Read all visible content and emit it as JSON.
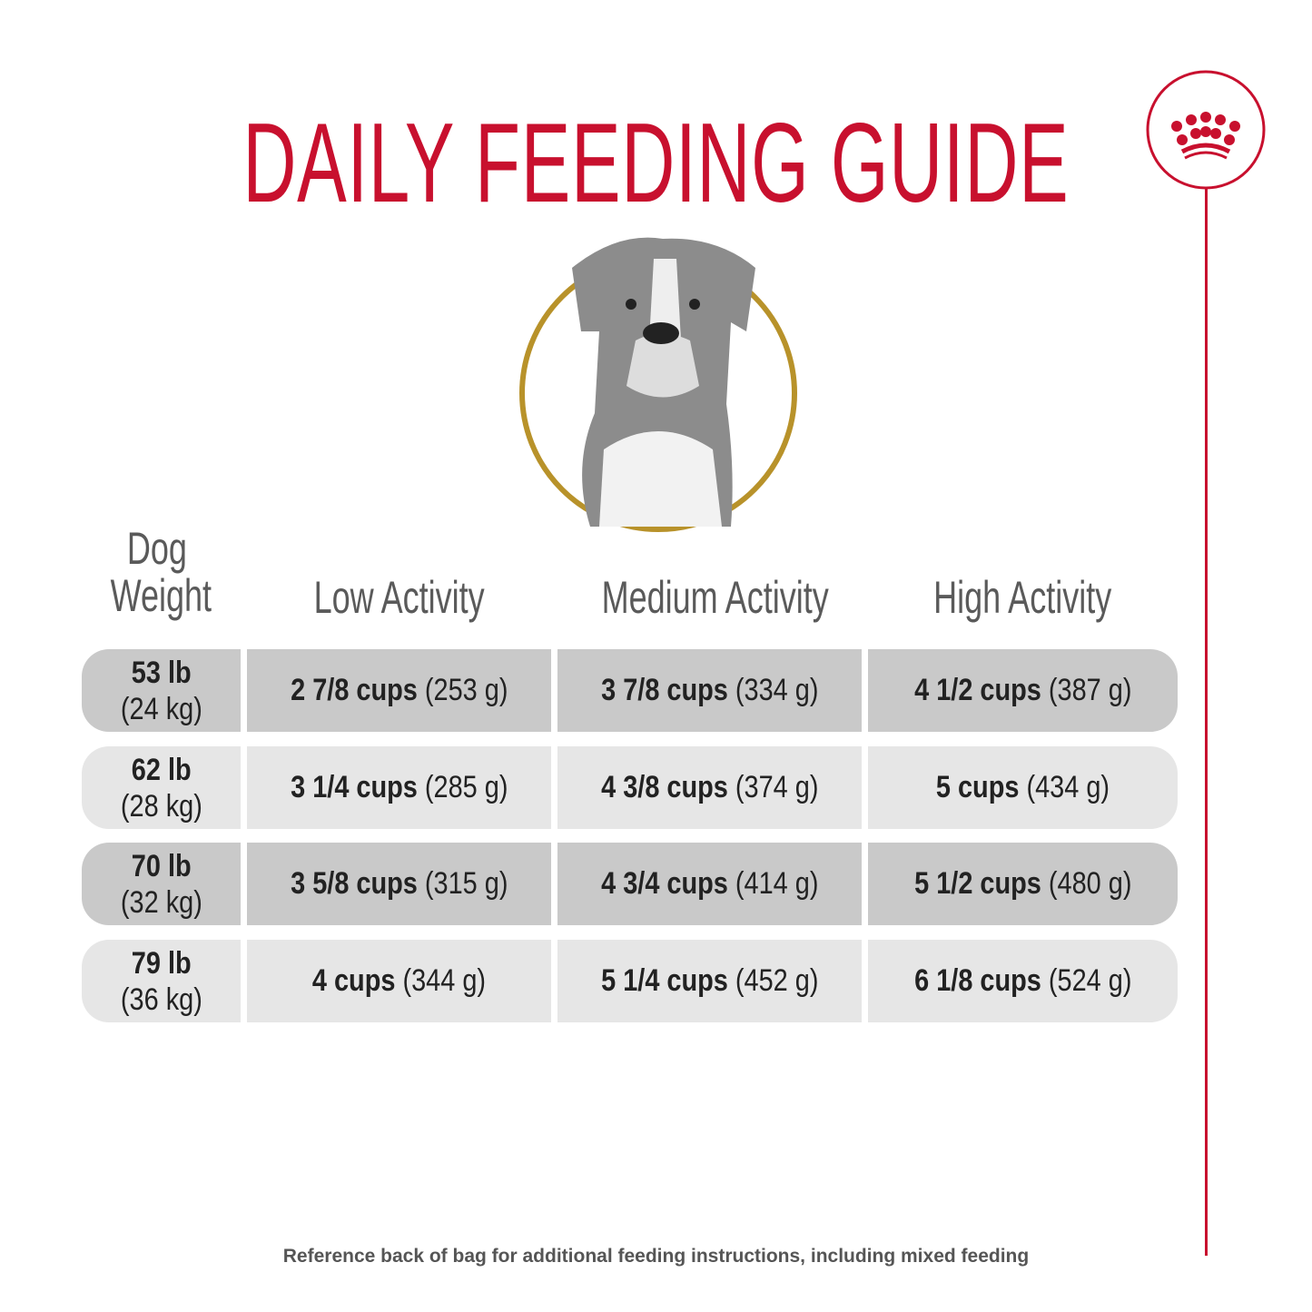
{
  "title": "DAILY FEEDING GUIDE",
  "colors": {
    "brand_red": "#c8102e",
    "gold_ring": "#b8922a",
    "row_dark": "#c9c9c9",
    "row_light": "#e6e6e6",
    "header_gray": "#5a5a5a"
  },
  "logo": {
    "icon": "crown-icon"
  },
  "headers": {
    "weight_line1": "Dog",
    "weight_line2": "Weight",
    "low": "Low Activity",
    "medium": "Medium Activity",
    "high": "High Activity"
  },
  "rows": [
    {
      "lb": "53 lb",
      "kg": "(24 kg)",
      "low": {
        "cups": "2 7/8 cups",
        "g": "(253 g)"
      },
      "medium": {
        "cups": "3 7/8 cups",
        "g": "(334 g)"
      },
      "high": {
        "cups": "4 1/2 cups",
        "g": "(387 g)"
      }
    },
    {
      "lb": "62 lb",
      "kg": "(28 kg)",
      "low": {
        "cups": "3 1/4 cups",
        "g": "(285 g)"
      },
      "medium": {
        "cups": "4 3/8 cups",
        "g": "(374 g)"
      },
      "high": {
        "cups": "5 cups",
        "g": "(434 g)"
      }
    },
    {
      "lb": "70 lb",
      "kg": "(32 kg)",
      "low": {
        "cups": "3 5/8 cups",
        "g": "(315 g)"
      },
      "medium": {
        "cups": "4 3/4 cups",
        "g": "(414 g)"
      },
      "high": {
        "cups": "5 1/2 cups",
        "g": "(480 g)"
      }
    },
    {
      "lb": "79 lb",
      "kg": "(36 kg)",
      "low": {
        "cups": "4 cups",
        "g": "(344 g)"
      },
      "medium": {
        "cups": "5 1/4 cups",
        "g": "(452 g)"
      },
      "high": {
        "cups": "6 1/8 cups",
        "g": "(524 g)"
      }
    }
  ],
  "footer": "Reference back of bag for additional feeding instructions, including mixed feeding"
}
